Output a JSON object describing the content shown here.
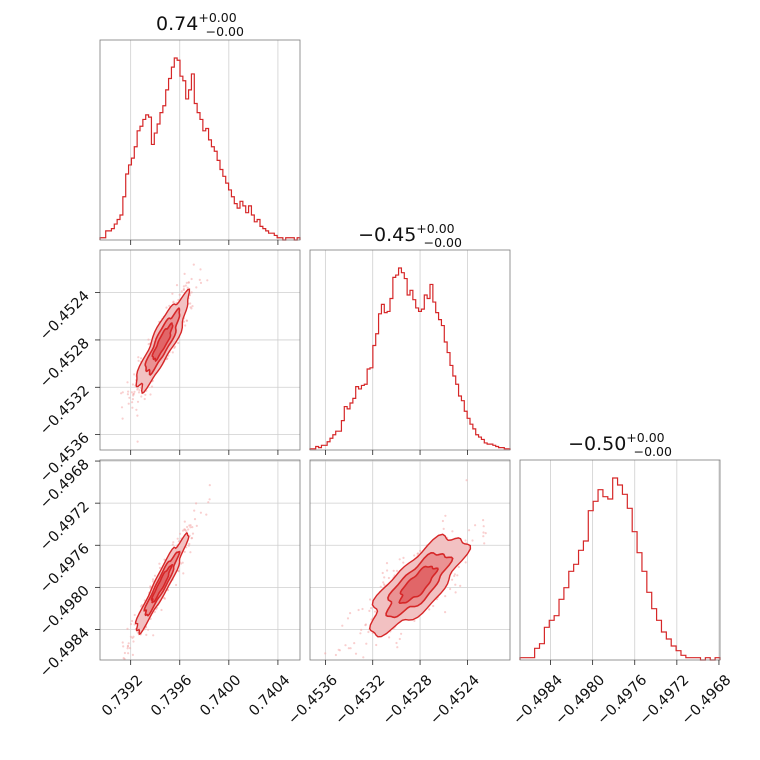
{
  "chart_data": {
    "type": "corner",
    "color": "#d62728",
    "grid": true,
    "parameters": [
      {
        "title_value": "0.74",
        "title_plus": "+0.00",
        "title_minus": "−0.00",
        "range": [
          0.73895,
          0.74058
        ],
        "ticks": [
          0.7392,
          0.7396,
          0.74,
          0.7404
        ],
        "tick_labels": [
          "0.7392",
          "0.7396",
          "0.7400",
          "0.7404"
        ],
        "hist_counts": [
          1,
          1,
          4,
          4,
          5,
          7,
          9,
          11,
          19,
          29,
          33,
          36,
          41,
          48,
          50,
          53,
          55,
          54,
          42,
          47,
          51,
          56,
          59,
          66,
          71,
          76,
          80,
          79,
          72,
          70,
          62,
          66,
          73,
          60,
          56,
          53,
          48,
          49,
          44,
          41,
          39,
          35,
          31,
          28,
          25,
          22,
          19,
          16,
          14,
          17,
          15,
          12,
          15,
          11,
          8,
          9,
          6,
          5,
          4,
          3,
          3,
          2,
          1,
          1,
          0,
          1,
          1,
          1,
          0,
          1
        ]
      },
      {
        "title_value": "−0.45",
        "title_plus": "+0.00",
        "title_minus": "−0.00",
        "range": [
          -0.45373,
          -0.45204
        ],
        "ticks": [
          -0.4536,
          -0.4532,
          -0.4528,
          -0.4524
        ],
        "tick_labels": [
          "−0.4536",
          "−0.4532",
          "−0.4528",
          "−0.4524"
        ],
        "hist_counts": [
          1,
          1,
          3,
          2,
          4,
          4,
          7,
          10,
          13,
          16,
          16,
          25,
          37,
          35,
          40,
          44,
          54,
          52,
          55,
          56,
          69,
          70,
          89,
          99,
          116,
          124,
          117,
          118,
          129,
          147,
          149,
          155,
          151,
          146,
          132,
          136,
          128,
          121,
          118,
          120,
          132,
          129,
          141,
          126,
          117,
          111,
          106,
          92,
          83,
          72,
          63,
          56,
          46,
          42,
          33,
          27,
          22,
          18,
          13,
          11,
          9,
          6,
          5,
          5,
          4,
          3,
          2,
          2,
          1,
          1
        ]
      },
      {
        "title_value": "−0.50",
        "title_plus": "+0.00",
        "title_minus": "−0.00",
        "range": [
          -0.49869,
          -0.49679
        ],
        "ticks": [
          -0.4984,
          -0.498,
          -0.4976,
          -0.4972,
          -0.4968
        ],
        "tick_labels": [
          "−0.4984",
          "−0.4980",
          "−0.4976",
          "−0.4972",
          "−0.4968"
        ],
        "hist_counts": [
          1,
          1,
          1,
          5,
          7,
          14,
          17,
          19,
          26,
          31,
          38,
          41,
          47,
          51,
          64,
          68,
          73,
          70,
          69,
          78,
          75,
          71,
          65,
          55,
          46,
          38,
          29,
          22,
          17,
          12,
          9,
          6,
          4,
          2,
          1,
          1,
          1,
          0,
          1,
          0,
          1
        ]
      }
    ],
    "panels": [
      {
        "row": 1,
        "col": 0,
        "center": [
          0.73946,
          -0.45282
        ],
        "sd": [
          0.000105,
          0.0002
        ],
        "corr": 0.88
      },
      {
        "row": 2,
        "col": 0,
        "center": [
          0.73945,
          -0.49797
        ],
        "sd": [
          0.000105,
          0.00023
        ],
        "corr": 0.95
      },
      {
        "row": 2,
        "col": 1,
        "center": [
          -0.45282,
          -0.49797
        ],
        "sd": [
          0.0002,
          0.00023
        ],
        "corr": 0.78
      }
    ]
  }
}
